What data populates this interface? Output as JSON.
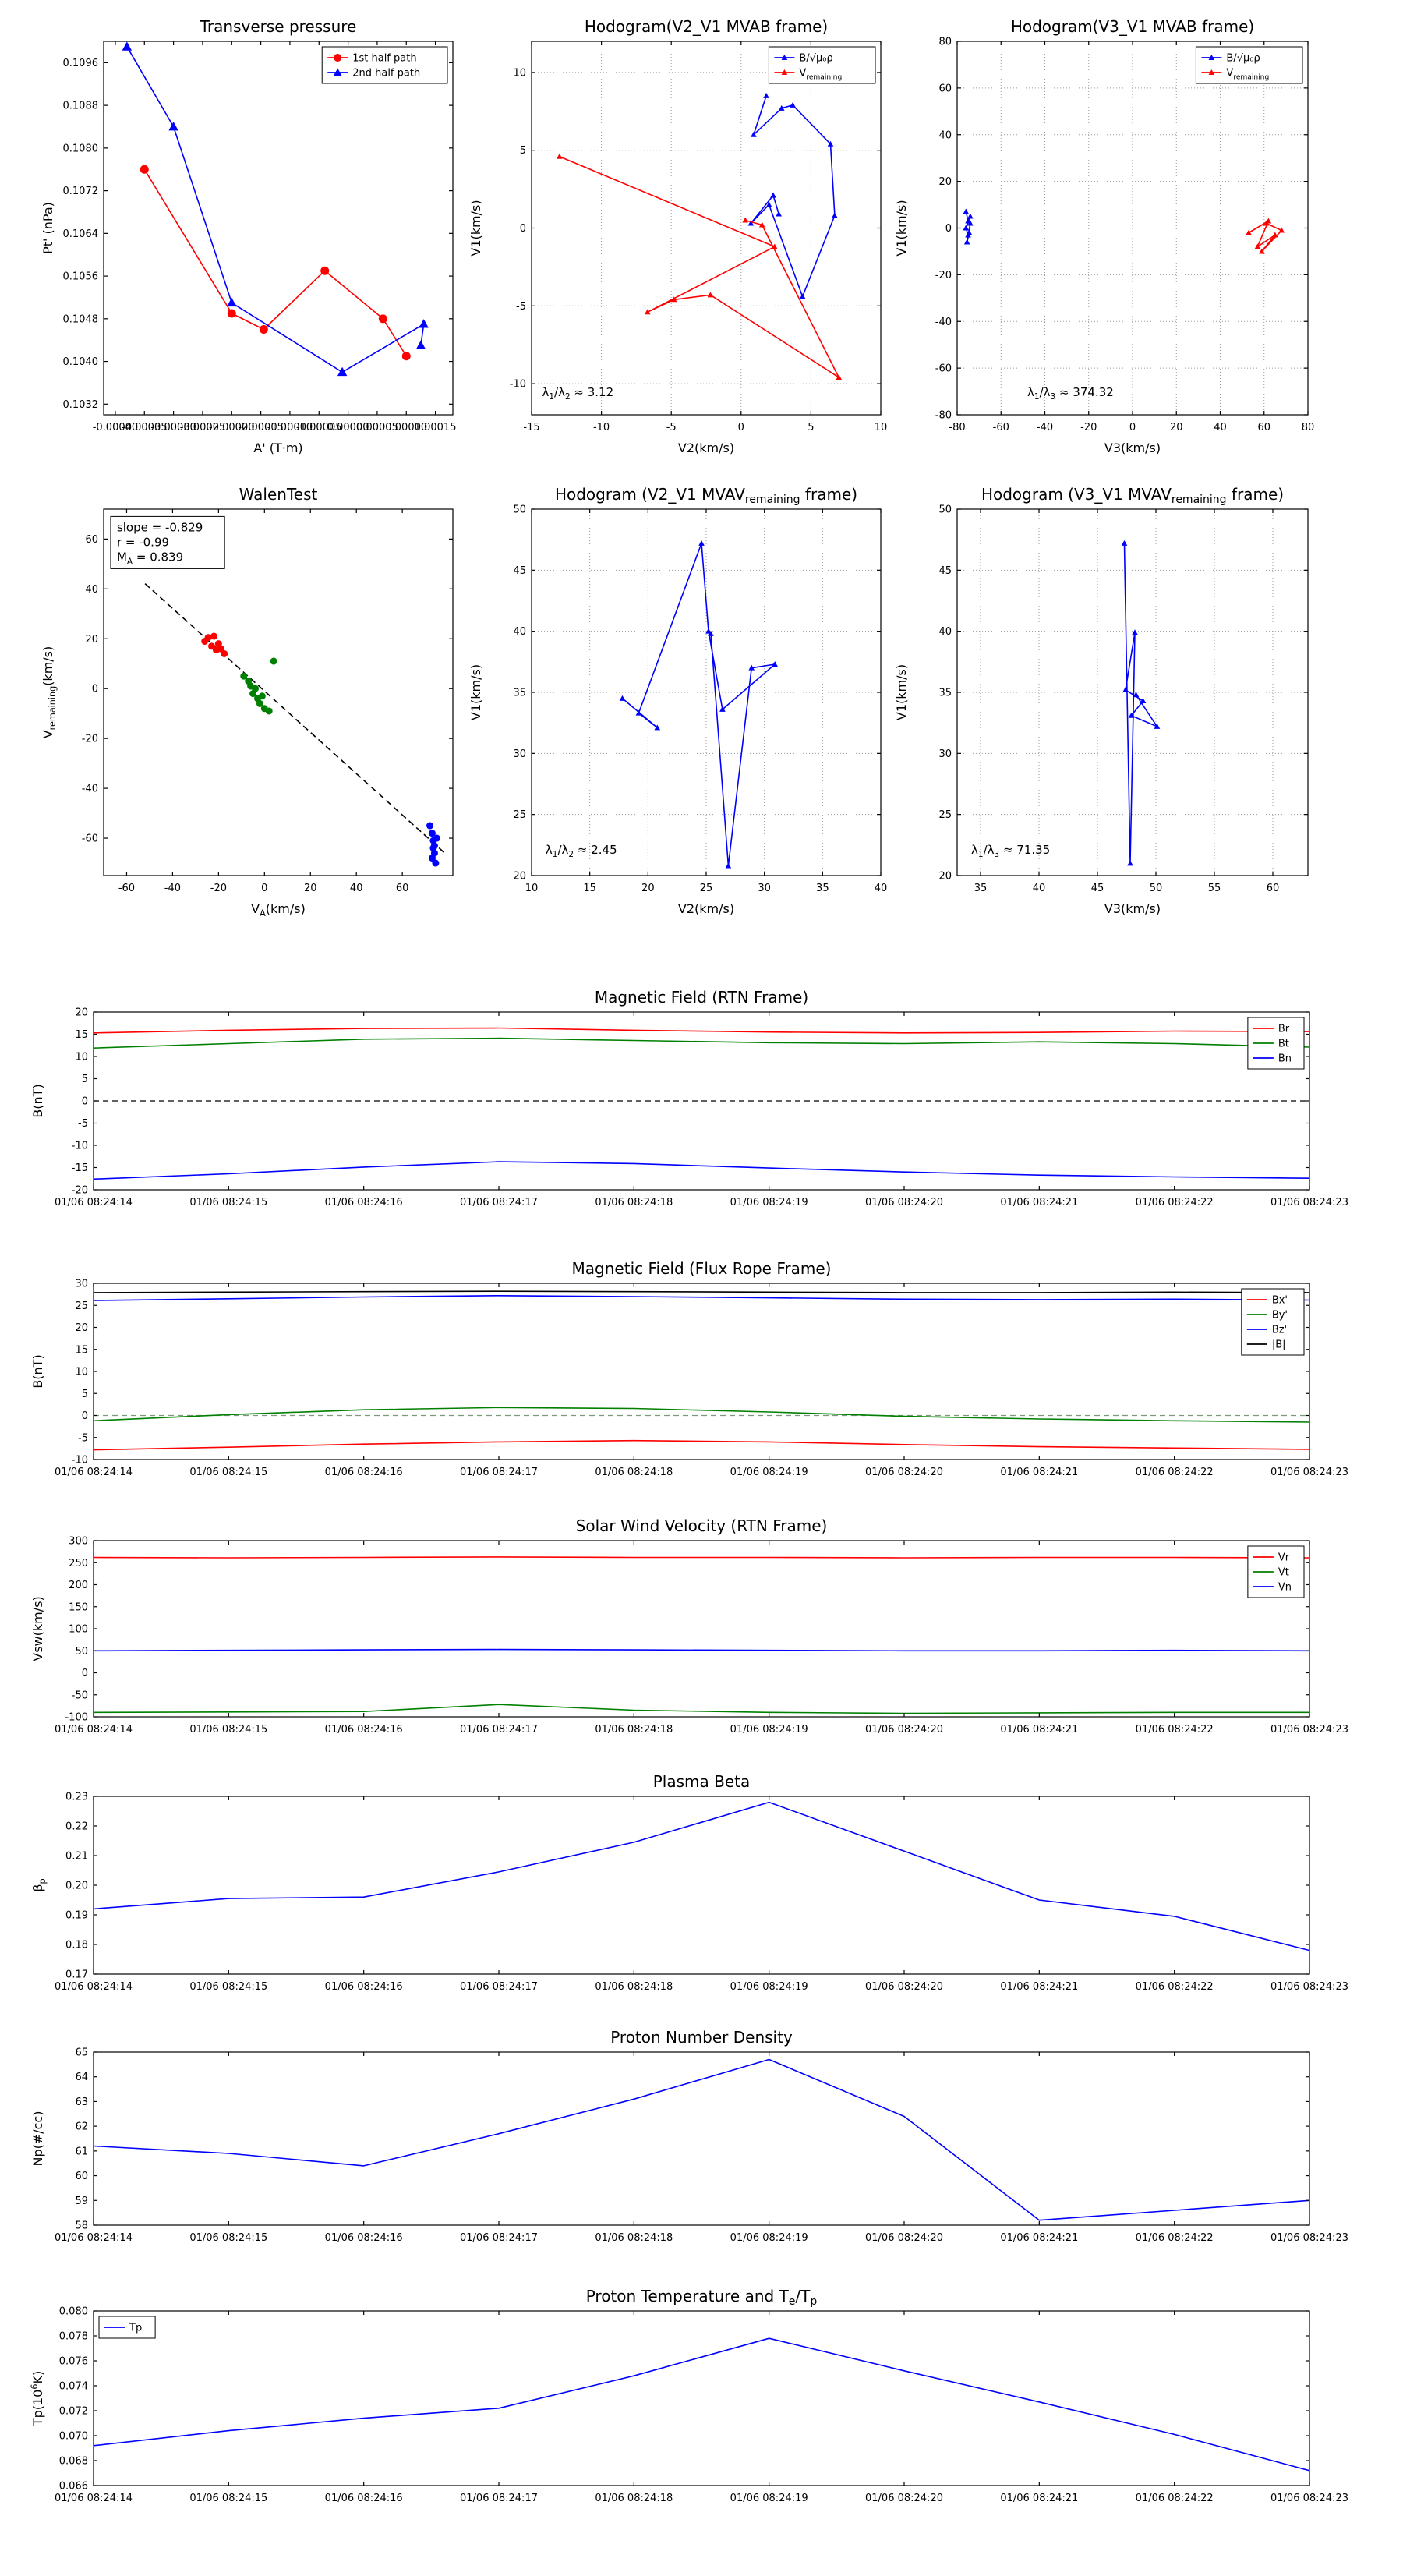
{
  "page": {
    "background": "#ffffff"
  },
  "time_labels": [
    "01/06 08:24:14",
    "01/06 08:24:15",
    "01/06 08:24:16",
    "01/06 08:24:17",
    "01/06 08:24:18",
    "01/06 08:24:19",
    "01/06 08:24:20",
    "01/06 08:24:21",
    "01/06 08:24:22",
    "01/06 08:24:23"
  ],
  "chart_data": [
    {
      "id": "transverse-pressure",
      "type": "line",
      "title": "Transverse pressure",
      "xlabel": "A' (T·m)",
      "ylabel": "Pt' (nPa)",
      "xlim": [
        -0.00042,
        0.00018
      ],
      "ylim": [
        0.103,
        0.11
      ],
      "xticks": [
        -0.0004,
        -0.00035,
        -0.0003,
        -0.00025,
        -0.0002,
        -0.00015,
        -0.0001,
        -5e-05,
        0,
        5e-05,
        0.0001,
        0.00015
      ],
      "xtick_labels": [
        "-0.00040",
        "-0.00035",
        "-0.00030",
        "-0.00025",
        "-0.00020",
        "-0.00015",
        "-0.00010",
        "-0.00005",
        "0.00000",
        "0.00005",
        "0.00010",
        "0.00015"
      ],
      "yticks": [
        0.1032,
        0.104,
        0.1048,
        0.1056,
        0.1064,
        0.1072,
        0.108,
        0.1088,
        0.1096
      ],
      "ytick_labels": [
        "0.1032",
        "0.1040",
        "0.1048",
        "0.1056",
        "0.1064",
        "0.1072",
        "0.1080",
        "0.1088",
        "0.1096"
      ],
      "grid": false,
      "legend": {
        "pos": "ne"
      },
      "series": [
        {
          "name": "1st half path",
          "color": "#ff0000",
          "marker": "circle",
          "x": [
            -0.00035,
            -0.0002,
            -0.000145,
            -4e-05,
            6e-05,
            0.0001
          ],
          "y": [
            0.1076,
            0.1049,
            0.1046,
            0.1057,
            0.1048,
            0.1041
          ]
        },
        {
          "name": "2nd half path",
          "color": "#0000ff",
          "marker": "triangle",
          "x": [
            -0.00038,
            -0.0003,
            -0.0002,
            -1e-05,
            0.00013,
            0.000125
          ],
          "y": [
            0.1099,
            0.1084,
            0.1051,
            0.1038,
            0.1047,
            0.1043
          ]
        }
      ]
    },
    {
      "id": "hodogram-v2v1-mvab",
      "type": "line",
      "title": "Hodogram(V2_V1 MVAB frame)",
      "xlabel": "V2(km/s)",
      "ylabel": "V1(km/s)",
      "xlim": [
        -15,
        10
      ],
      "ylim": [
        -12,
        12
      ],
      "xticks": [
        -15,
        -10,
        -5,
        0,
        5,
        10
      ],
      "yticks": [
        -10,
        -5,
        0,
        5,
        10
      ],
      "grid": true,
      "legend": {
        "pos": "ne"
      },
      "series": [
        {
          "name": "B/√μ₀ρ",
          "color": "#0000ff",
          "marker": "tri",
          "x": [
            1.8,
            0.9,
            2.9,
            3.7,
            6.4,
            6.7,
            4.4,
            2.0,
            0.7,
            2.3,
            2.7
          ],
          "y": [
            8.5,
            6.0,
            7.7,
            7.9,
            5.4,
            0.8,
            -4.4,
            1.5,
            0.3,
            2.1,
            0.9
          ]
        },
        {
          "name": "V_{remaining}",
          "color": "#ff0000",
          "marker": "tri",
          "x": [
            -13.0,
            2.4,
            -6.7,
            -4.8,
            -2.2,
            7.0,
            1.5,
            0.3
          ],
          "y": [
            4.6,
            -1.2,
            -5.4,
            -4.6,
            -4.3,
            -9.6,
            0.2,
            0.5
          ]
        }
      ],
      "annotations": [
        {
          "text": "λ_{1}/λ_{2} ≈ 3.12",
          "fx": 0.03,
          "fy": 0.95
        }
      ]
    },
    {
      "id": "hodogram-v3v1-mvab",
      "type": "line",
      "title": "Hodogram(V3_V1 MVAB frame)",
      "xlabel": "V3(km/s)",
      "ylabel": "V1(km/s)",
      "xlim": [
        -80,
        80
      ],
      "ylim": [
        -80,
        80
      ],
      "xticks": [
        -80,
        -60,
        -40,
        -20,
        0,
        20,
        40,
        60,
        80
      ],
      "yticks": [
        -80,
        -60,
        -40,
        -20,
        0,
        20,
        40,
        60,
        80
      ],
      "grid": true,
      "legend": {
        "pos": "ne"
      },
      "series": [
        {
          "name": "B/√μ₀ρ",
          "color": "#0000ff",
          "marker": "tri",
          "x": [
            -76,
            -75,
            -74,
            -76,
            -75,
            -74,
            -75.5,
            -74.5
          ],
          "y": [
            7,
            3,
            5,
            0,
            -3,
            2,
            -6,
            -2
          ]
        },
        {
          "name": "V_{remaining}",
          "color": "#ff0000",
          "marker": "tri",
          "x": [
            53,
            62,
            57,
            65,
            59,
            68,
            61
          ],
          "y": [
            -2,
            3,
            -8,
            -3,
            -10,
            -1,
            2
          ]
        }
      ],
      "annotations": [
        {
          "text": "λ_{1}/λ_{3} ≈ 374.32",
          "fx": 0.2,
          "fy": 0.95
        }
      ]
    },
    {
      "id": "walen-test",
      "type": "scatter",
      "title": "WalenTest",
      "xlabel": "V_{A}(km/s)",
      "ylabel": "V_{remaining}(km/s)",
      "xlim": [
        -70,
        82
      ],
      "ylim": [
        -75,
        72
      ],
      "xticks": [
        -60,
        -40,
        -20,
        0,
        20,
        40,
        60
      ],
      "yticks": [
        -60,
        -40,
        -20,
        0,
        20,
        40,
        60
      ],
      "grid": false,
      "series": [
        {
          "name": "fit",
          "legend": false,
          "color": "#000000",
          "dash": "8,5",
          "marker": "none",
          "x": [
            -52,
            78
          ],
          "y": [
            42.1,
            -65.6
          ]
        },
        {
          "name": "first half",
          "legend": false,
          "color": "#ff0000",
          "marker": "dot",
          "line": "none",
          "x": [
            -26,
            -24.5,
            -23,
            -22,
            -21,
            -20,
            -19,
            -17.5
          ],
          "y": [
            19,
            20.5,
            17,
            21,
            15.5,
            18,
            16,
            14
          ]
        },
        {
          "name": "middle",
          "legend": false,
          "color": "#008000",
          "marker": "dot",
          "line": "none",
          "x": [
            -9,
            -7,
            -6,
            -5,
            -4,
            -3,
            -2,
            -1,
            0,
            2,
            4
          ],
          "y": [
            5,
            3,
            1,
            -2,
            0,
            -4,
            -6,
            -3,
            -8,
            -9,
            11
          ]
        },
        {
          "name": "second half",
          "legend": false,
          "color": "#0000ff",
          "marker": "dot",
          "line": "none",
          "x": [
            72,
            73,
            73.5,
            74,
            74,
            73,
            74.5,
            75,
            73.5
          ],
          "y": [
            -55,
            -58,
            -61,
            -63,
            -66,
            -68,
            -70,
            -60,
            -64
          ]
        }
      ],
      "annotations": [
        {
          "lines": [
            "slope = -0.829",
            "r = -0.99",
            "M_{A} = 0.839"
          ],
          "fx": 0.02,
          "fy": 0.02,
          "box": true
        }
      ]
    },
    {
      "id": "hodogram-v2v1-mvav",
      "type": "line",
      "title": "Hodogram (V2_V1 MVAV_{remaining} frame)",
      "xlabel": "V2(km/s)",
      "ylabel": "V1(km/s)",
      "xlim": [
        10,
        40
      ],
      "ylim": [
        20,
        50
      ],
      "xticks": [
        10,
        15,
        20,
        25,
        30,
        35,
        40
      ],
      "yticks": [
        20,
        25,
        30,
        35,
        40,
        45,
        50
      ],
      "grid": true,
      "series": [
        {
          "name": "B",
          "legend": false,
          "color": "#0000ff",
          "marker": "tri",
          "x": [
            17.8,
            20.8,
            19.2,
            24.6,
            25.2,
            26.4,
            30.9,
            28.9,
            26.9,
            25.4
          ],
          "y": [
            34.5,
            32.1,
            33.3,
            47.2,
            40.0,
            33.6,
            37.3,
            37.0,
            20.8,
            39.8
          ]
        }
      ],
      "annotations": [
        {
          "text": "λ_{1}/λ_{2} ≈ 2.45",
          "fx": 0.04,
          "fy": 0.94
        }
      ]
    },
    {
      "id": "hodogram-v3v1-mvav",
      "type": "line",
      "title": "Hodogram (V3_V1 MVAV_{remaining} frame)",
      "xlabel": "V3(km/s)",
      "ylabel": "V1(km/s)",
      "xlim": [
        33,
        63
      ],
      "ylim": [
        20,
        50
      ],
      "xticks": [
        35,
        40,
        45,
        50,
        55,
        60
      ],
      "yticks": [
        20,
        25,
        30,
        35,
        40,
        45,
        50
      ],
      "grid": true,
      "series": [
        {
          "name": "B",
          "legend": false,
          "color": "#0000ff",
          "marker": "tri",
          "x": [
            47.3,
            47.8,
            48.2,
            47.4,
            48.9,
            47.9,
            50.1,
            48.3
          ],
          "y": [
            47.2,
            21.0,
            39.9,
            35.2,
            34.3,
            33.1,
            32.2,
            34.8
          ]
        }
      ],
      "annotations": [
        {
          "text": "λ_{1}/λ_{3} ≈ 71.35",
          "fx": 0.04,
          "fy": 0.94
        }
      ]
    },
    {
      "id": "b-rtn",
      "type": "line",
      "title": "Magnetic Field (RTN Frame)",
      "ylabel": "B(nT)",
      "xlim": [
        0,
        9
      ],
      "ylim": [
        -20,
        20
      ],
      "xticks": [
        0,
        1,
        2,
        3,
        4,
        5,
        6,
        7,
        8,
        9
      ],
      "xtick_labels": "TIME",
      "yticks": [
        -20,
        -15,
        -10,
        -5,
        0,
        5,
        10,
        15,
        20
      ],
      "legend": {
        "pos": "ne"
      },
      "hlines": [
        {
          "y": 0,
          "color": "#000000",
          "dash": "7,5"
        }
      ],
      "series": [
        {
          "name": "Br",
          "color": "#ff0000",
          "y": [
            15.3,
            15.9,
            16.3,
            16.4,
            15.9,
            15.5,
            15.3,
            15.4,
            15.7,
            15.6
          ]
        },
        {
          "name": "Bt",
          "color": "#008000",
          "y": [
            11.9,
            12.9,
            13.9,
            14.1,
            13.6,
            13.1,
            12.9,
            13.3,
            12.9,
            12.1
          ]
        },
        {
          "name": "Bn",
          "color": "#0000ff",
          "y": [
            -17.6,
            -16.4,
            -14.9,
            -13.7,
            -14.1,
            -15.1,
            -16.0,
            -16.7,
            -17.1,
            -17.4
          ]
        }
      ]
    },
    {
      "id": "b-fluxrope",
      "type": "line",
      "title": "Magnetic Field (Flux Rope Frame)",
      "ylabel": "B(nT)",
      "xlim": [
        0,
        9
      ],
      "ylim": [
        -10,
        30
      ],
      "xticks": [
        0,
        1,
        2,
        3,
        4,
        5,
        6,
        7,
        8,
        9
      ],
      "xtick_labels": "TIME",
      "yticks": [
        -10,
        -5,
        0,
        5,
        10,
        15,
        20,
        25,
        30
      ],
      "legend": {
        "pos": "ne"
      },
      "hlines": [
        {
          "y": 0,
          "color": "#7a9a7a",
          "dash": "7,5"
        }
      ],
      "series": [
        {
          "name": "Bx'",
          "color": "#ff0000",
          "y": [
            -7.8,
            -7.2,
            -6.5,
            -6.0,
            -5.7,
            -6.0,
            -6.6,
            -7.1,
            -7.4,
            -7.7
          ]
        },
        {
          "name": "By'",
          "color": "#008000",
          "y": [
            -1.2,
            0.2,
            1.3,
            1.8,
            1.6,
            0.8,
            -0.2,
            -0.8,
            -1.2,
            -1.5
          ]
        },
        {
          "name": "Bz'",
          "color": "#0000ff",
          "y": [
            26.1,
            26.5,
            26.9,
            27.2,
            27.0,
            26.7,
            26.4,
            26.3,
            26.4,
            26.2
          ]
        },
        {
          "name": "|B|",
          "color": "#000000",
          "y": [
            27.9,
            28.0,
            28.1,
            28.2,
            28.1,
            28.0,
            27.9,
            27.9,
            28.0,
            27.9
          ]
        }
      ]
    },
    {
      "id": "vsw-rtn",
      "type": "line",
      "title": "Solar Wind Velocity (RTN Frame)",
      "ylabel": "Vsw(km/s)",
      "xlim": [
        0,
        9
      ],
      "ylim": [
        -100,
        300
      ],
      "xticks": [
        0,
        1,
        2,
        3,
        4,
        5,
        6,
        7,
        8,
        9
      ],
      "xtick_labels": "TIME",
      "yticks": [
        -100,
        -50,
        0,
        50,
        100,
        150,
        200,
        250,
        300
      ],
      "legend": {
        "pos": "ne"
      },
      "series": [
        {
          "name": "Vr",
          "color": "#ff0000",
          "y": [
            262,
            261,
            262,
            263,
            262,
            262,
            261,
            262,
            262,
            261
          ]
        },
        {
          "name": "Vt",
          "color": "#008000",
          "y": [
            -90,
            -89,
            -88,
            -72,
            -85,
            -90,
            -92,
            -91,
            -90,
            -90
          ]
        },
        {
          "name": "Vn",
          "color": "#0000ff",
          "y": [
            50,
            51,
            52,
            53,
            52,
            51,
            50,
            50,
            51,
            50
          ]
        }
      ]
    },
    {
      "id": "plasma-beta",
      "type": "line",
      "title": "Plasma Beta",
      "ylabel": "β_{p}",
      "xlim": [
        0,
        9
      ],
      "ylim": [
        0.17,
        0.23
      ],
      "xticks": [
        0,
        1,
        2,
        3,
        4,
        5,
        6,
        7,
        8,
        9
      ],
      "xtick_labels": "TIME",
      "yticks": [
        0.17,
        0.18,
        0.19,
        0.2,
        0.21,
        0.22,
        0.23
      ],
      "ytick_labels": [
        "0.17",
        "0.18",
        "0.19",
        "0.20",
        "0.21",
        "0.22",
        "0.23"
      ],
      "series": [
        {
          "name": "beta",
          "legend": false,
          "color": "#0000ff",
          "y": [
            0.192,
            0.1955,
            0.196,
            0.2045,
            0.2145,
            0.228,
            0.2115,
            0.195,
            0.1895,
            0.178
          ]
        }
      ]
    },
    {
      "id": "proton-density",
      "type": "line",
      "title": "Proton Number Density",
      "ylabel": "Np(#/cc)",
      "xlim": [
        0,
        9
      ],
      "ylim": [
        58,
        65
      ],
      "xticks": [
        0,
        1,
        2,
        3,
        4,
        5,
        6,
        7,
        8,
        9
      ],
      "xtick_labels": "TIME",
      "yticks": [
        58,
        59,
        60,
        61,
        62,
        63,
        64,
        65
      ],
      "series": [
        {
          "name": "Np",
          "legend": false,
          "color": "#0000ff",
          "y": [
            61.2,
            60.9,
            60.4,
            61.7,
            63.1,
            64.7,
            62.4,
            58.2,
            58.6,
            59.0
          ]
        }
      ]
    },
    {
      "id": "proton-temp",
      "type": "line",
      "title": "Proton Temperature and T_{e}/T_{p}",
      "ylabel": "Tp(10^{6}K)",
      "xlim": [
        0,
        9
      ],
      "ylim": [
        0.066,
        0.08
      ],
      "xticks": [
        0,
        1,
        2,
        3,
        4,
        5,
        6,
        7,
        8,
        9
      ],
      "xtick_labels": "TIME",
      "yticks": [
        0.066,
        0.068,
        0.07,
        0.072,
        0.074,
        0.076,
        0.078,
        0.08
      ],
      "ytick_labels": [
        "0.066",
        "0.068",
        "0.070",
        "0.072",
        "0.074",
        "0.076",
        "0.078",
        "0.080"
      ],
      "legend": {
        "pos": "nw"
      },
      "series": [
        {
          "name": "Tp",
          "color": "#0000ff",
          "y": [
            0.0692,
            0.0704,
            0.0714,
            0.0722,
            0.0748,
            0.0778,
            0.0752,
            0.0727,
            0.0701,
            0.0672
          ]
        }
      ]
    }
  ]
}
